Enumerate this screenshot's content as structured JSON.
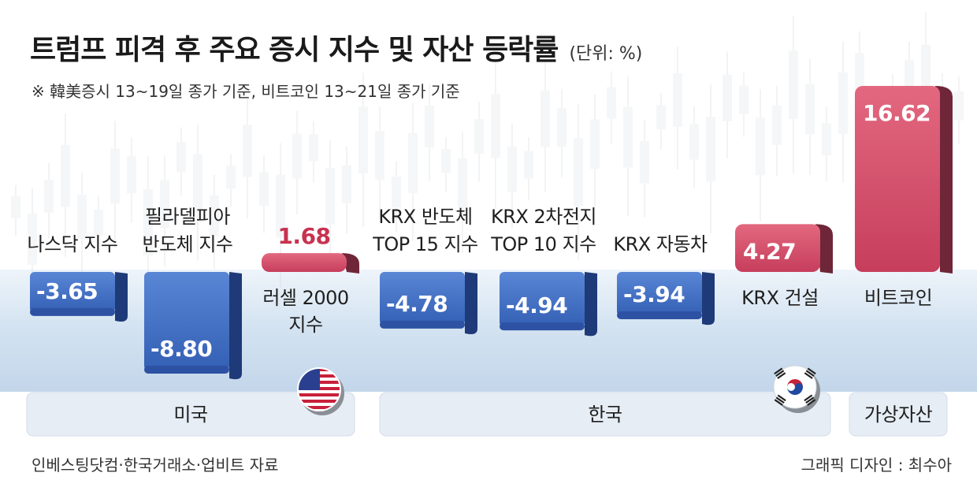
{
  "header": {
    "title": "트럼프 피격 후 주요 증시 지수 및 자산 등락률",
    "unit": "(단위: %)",
    "note": "※ 韓美증시 13~19일 종가 기준, 비트코인 13~21일 종가 기준"
  },
  "footer": {
    "source": "인베스팅닷컴·한국거래소·업비트 자료",
    "credit": "그래픽 디자인 : 최수아"
  },
  "chart_data": {
    "type": "bar",
    "title": "트럼프 피격 후 주요 증시 지수 및 자산 등락률",
    "unit": "(단위: %)",
    "categories": [
      [
        "나스닥 지수"
      ],
      [
        "필라델피아",
        "반도체 지수"
      ],
      [
        "러셀 2000",
        "지수"
      ],
      [
        "KRX 반도체",
        "TOP 15 지수"
      ],
      [
        "KRX 2차전지",
        "TOP 10 지수"
      ],
      [
        "KRX 자동차"
      ],
      [
        "KRX 건설"
      ],
      [
        "비트코인"
      ]
    ],
    "value_labels": [
      "-3.65",
      "-8.80",
      "1.68",
      "-4.78",
      "-4.94",
      "-3.94",
      "4.27",
      "16.62"
    ],
    "values": [
      -3.65,
      -8.8,
      1.68,
      -4.78,
      -4.94,
      -3.94,
      4.27,
      16.62
    ],
    "groups": [
      {
        "label": "미국",
        "members": [
          0,
          1,
          2
        ]
      },
      {
        "label": "한국",
        "members": [
          3,
          4,
          5,
          6
        ]
      },
      {
        "label": "가상자산",
        "members": [
          7
        ]
      }
    ],
    "colors": {
      "negative": "#3f6fc6",
      "negative_side": "#1e3a78",
      "positive": "#d24a68",
      "positive_side": "#6e2638",
      "positive_label": "#c8324f",
      "baseline_band": "#d5e4f2",
      "group_box": "#e6edf5"
    },
    "flags": [
      "us-flag-icon",
      "korea-flag-icon"
    ]
  }
}
